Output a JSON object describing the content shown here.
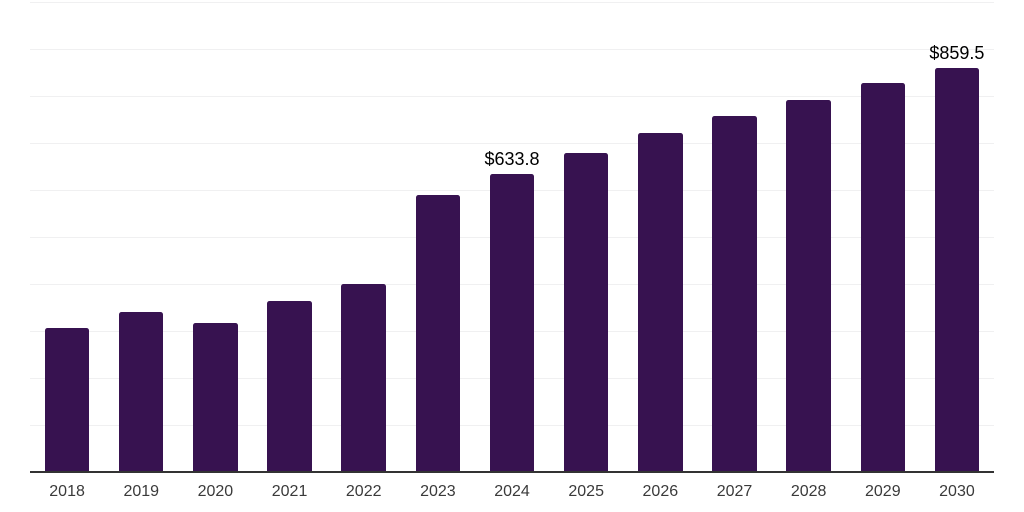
{
  "theme": {
    "background": "#ffffff",
    "bar_color": "#371250",
    "grid_color": "#f0f0f1",
    "axis_line_color": "#333333",
    "tick_label_color": "#3a3a3a",
    "data_label_color": "#000000"
  },
  "chart_data": {
    "type": "bar",
    "title": "",
    "xlabel": "",
    "ylabel": "",
    "categories": [
      "2018",
      "2019",
      "2020",
      "2021",
      "2022",
      "2023",
      "2024",
      "2025",
      "2026",
      "2027",
      "2028",
      "2029",
      "2030"
    ],
    "values": [
      306,
      340,
      316,
      363,
      399,
      590,
      633.8,
      678,
      721,
      758,
      792,
      828,
      859.5
    ],
    "data_labels": [
      "",
      "",
      "",
      "",
      "",
      "",
      "$633.8",
      "",
      "",
      "",
      "",
      "",
      "$859.5"
    ],
    "ylim": [
      0,
      1000
    ],
    "grid_step": 100,
    "grid": true,
    "legend": false,
    "y_tick_labels_visible": false
  }
}
